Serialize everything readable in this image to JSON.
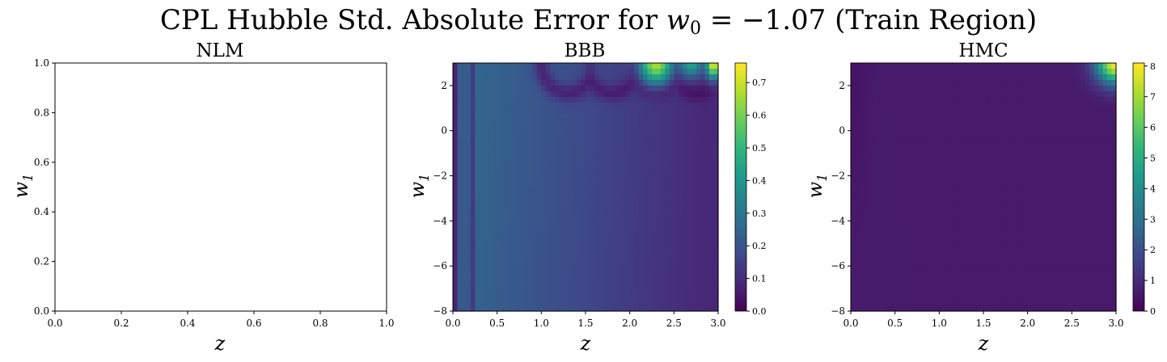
{
  "figure": {
    "title_prefix": "CPL Hubble Std. Absolute Error for ",
    "title_math_var": "w",
    "title_math_sub": "0",
    "title_math_rest": " = −1.07 (Train Region)"
  },
  "colors": {
    "viridis": [
      "#440154",
      "#482777",
      "#3e4989",
      "#31688e",
      "#26828e",
      "#1f9e89",
      "#35b779",
      "#6ece58",
      "#b5de2b",
      "#fde725"
    ],
    "axis": "#000000",
    "background": "#ffffff"
  },
  "chart_data": [
    {
      "type": "line",
      "title": "NLM",
      "xlabel_var": "z",
      "ylabel_var": "w",
      "ylabel_sub": "1",
      "xlim": [
        0,
        1
      ],
      "ylim": [
        0,
        1
      ],
      "xticks": [
        "0.0",
        "0.2",
        "0.4",
        "0.6",
        "0.8",
        "1.0"
      ],
      "yticks": [
        "0.0",
        "0.2",
        "0.4",
        "0.6",
        "0.8",
        "1.0"
      ],
      "empty": true
    },
    {
      "type": "heatmap",
      "title": "BBB",
      "xlabel_var": "z",
      "ylabel_var": "w",
      "ylabel_sub": "1",
      "xlim": [
        0,
        3
      ],
      "ylim": [
        -8,
        3
      ],
      "xticks": [
        "0.0",
        "0.5",
        "1.0",
        "1.5",
        "2.0",
        "2.5",
        "3.0"
      ],
      "yticks": [
        "−8",
        "−6",
        "−4",
        "−2",
        "0",
        "2"
      ],
      "colorbar": {
        "min": 0,
        "max": 0.76,
        "ticks": [
          "0.0",
          "0.1",
          "0.2",
          "0.3",
          "0.4",
          "0.5",
          "0.6",
          "0.7"
        ]
      },
      "x": [
        0.0,
        0.5,
        1.0,
        1.5,
        2.0,
        2.5,
        3.0
      ],
      "y": [
        -8,
        -6,
        -4,
        -2,
        0,
        2
      ],
      "z_description_values": {
        "low_z_column_max": 0.25,
        "mid_field": 0.16,
        "high_z_field": 0.09,
        "top_right_corner_max": 0.76
      }
    },
    {
      "type": "heatmap",
      "title": "HMC",
      "xlabel_var": "z",
      "ylabel_var": "w",
      "ylabel_sub": "1",
      "xlim": [
        0,
        3
      ],
      "ylim": [
        -8,
        3
      ],
      "xticks": [
        "0.0",
        "0.5",
        "1.0",
        "1.5",
        "2.0",
        "2.5",
        "3.0"
      ],
      "yticks": [
        "−8",
        "−6",
        "−4",
        "−2",
        "0",
        "2"
      ],
      "colorbar": {
        "min": 0,
        "max": 8.1,
        "ticks": [
          "0",
          "1",
          "2",
          "3",
          "4",
          "5",
          "6",
          "7",
          "8"
        ]
      },
      "x": [
        0.0,
        0.5,
        1.0,
        1.5,
        2.0,
        2.5,
        3.0
      ],
      "y": [
        -8,
        -6,
        -4,
        -2,
        0,
        2
      ],
      "z_description_values": {
        "field": 0.5,
        "top_right_corner_max": 8.1
      }
    }
  ]
}
